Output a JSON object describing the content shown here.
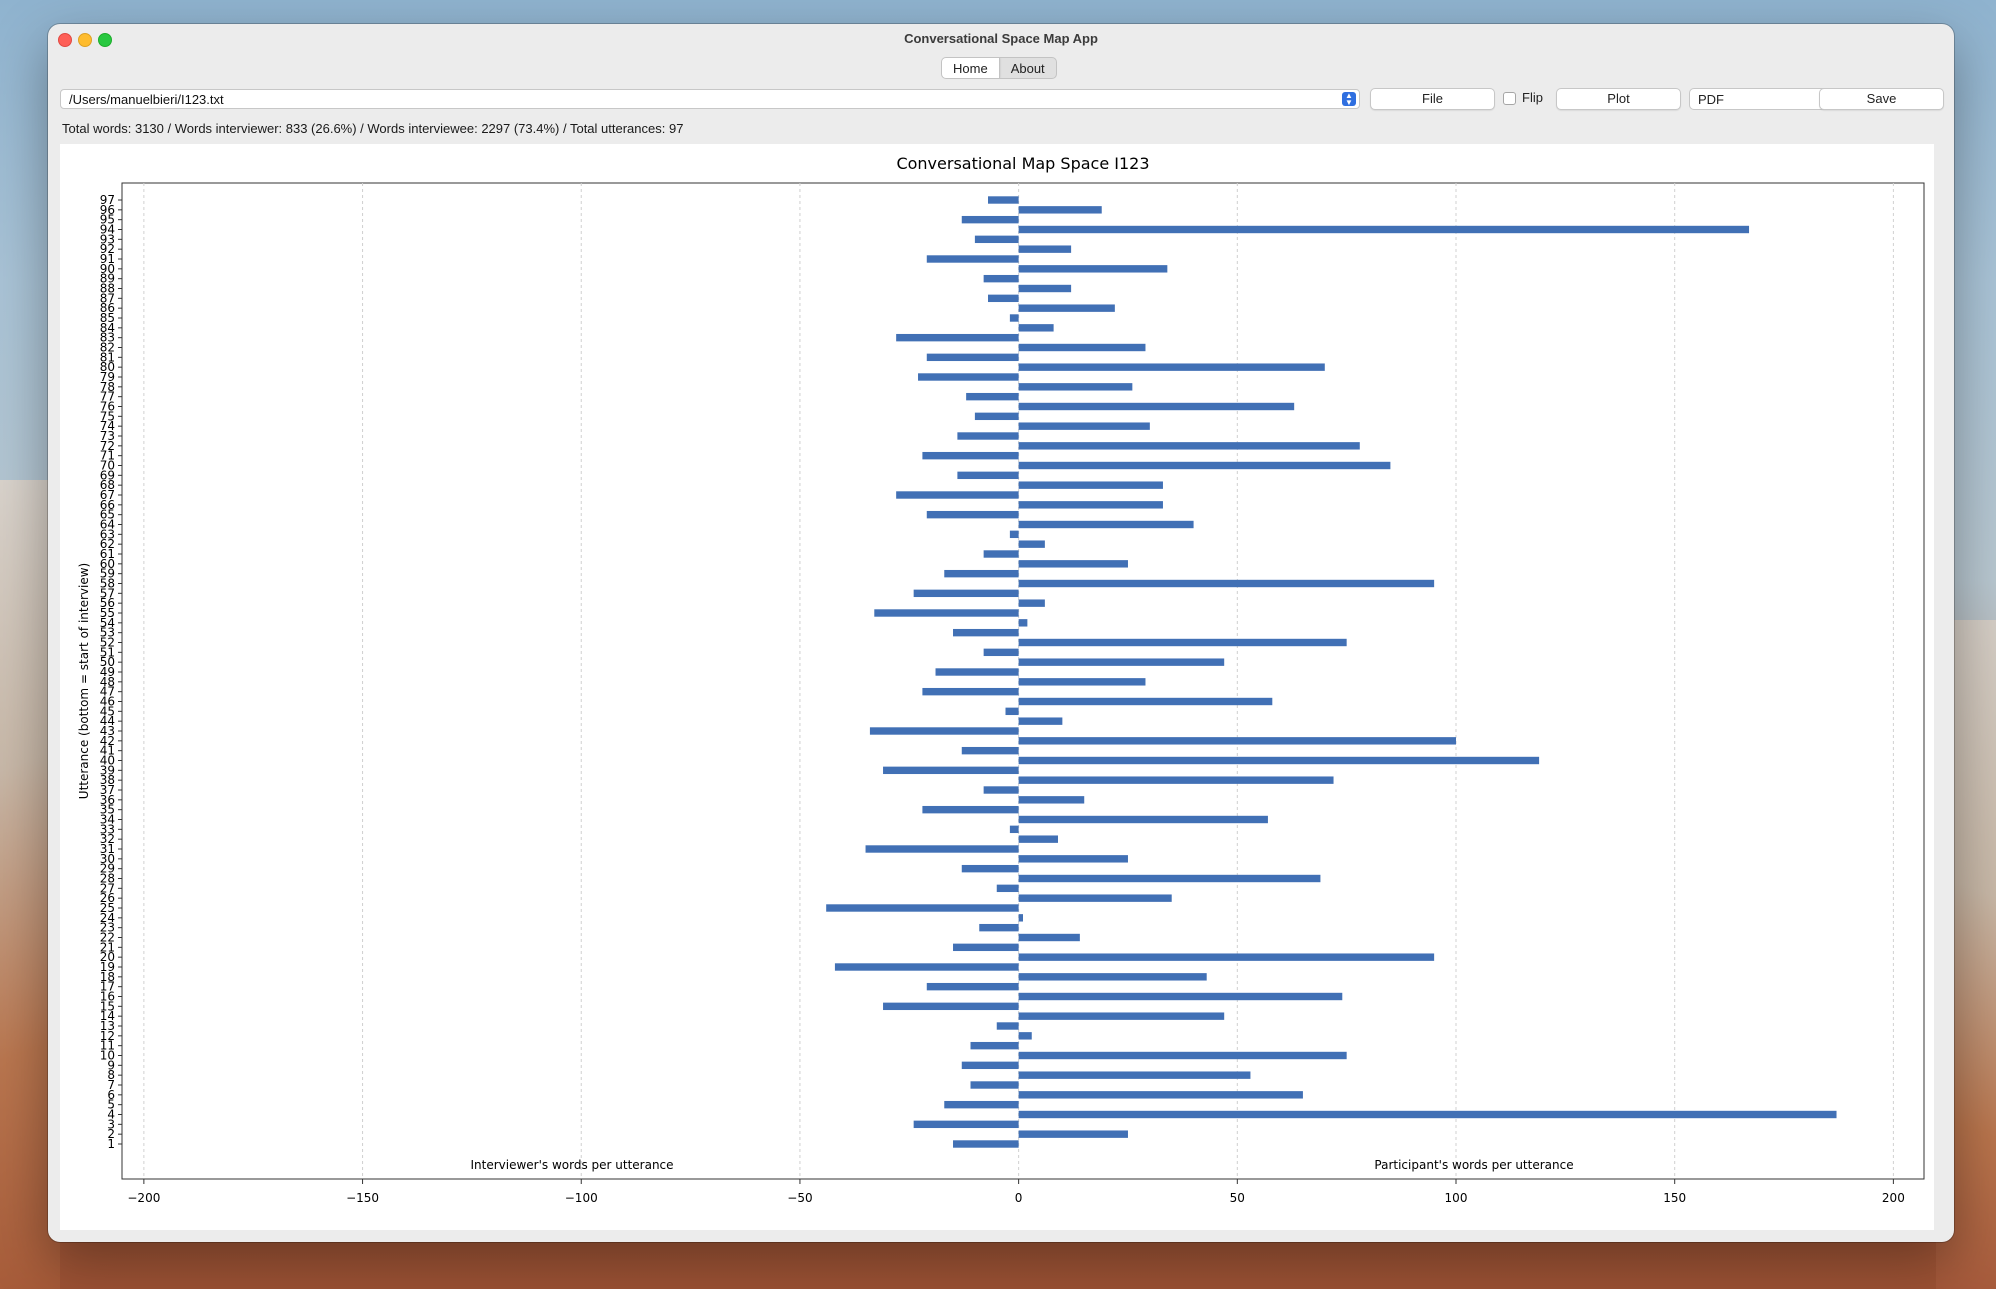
{
  "window": {
    "title": "Conversational Space Map App"
  },
  "tabs": [
    {
      "label": "Home",
      "active": true
    },
    {
      "label": "About",
      "active": false
    }
  ],
  "toolbar": {
    "file_path": "/Users/manuelbieri/I123.txt",
    "file_button": "File",
    "flip_label": "Flip",
    "flip_checked": false,
    "plot_button": "Plot",
    "format_value": "PDF",
    "save_button": "Save"
  },
  "stats": "Total words: 3130 / Words interviewer: 833 (26.6%) / Words interviewee: 2297 (73.4%) / Total utterances: 97",
  "colors": {
    "bar": "#4170b5",
    "accent": "#2f6fe0"
  },
  "chart_data": {
    "type": "bar",
    "orientation": "horizontal",
    "title": "Conversational Map Space I123",
    "ylabel": "Utterance (bottom = start of interview)",
    "left_label": "Interviewer's words per utterance",
    "right_label": "Participant's words per utterance",
    "xlim": [
      -205,
      207
    ],
    "xticks": [
      -200,
      -150,
      -100,
      -50,
      0,
      50,
      100,
      150,
      200
    ],
    "xtick_labels": [
      "−200",
      "−150",
      "−100",
      "−50",
      "0",
      "50",
      "100",
      "150",
      "200"
    ],
    "grid": "vertical dashed",
    "categories": [
      "1",
      "2",
      "3",
      "4",
      "5",
      "6",
      "7",
      "8",
      "9",
      "10",
      "11",
      "12",
      "13",
      "14",
      "15",
      "16",
      "17",
      "18",
      "19",
      "20",
      "21",
      "22",
      "23",
      "24",
      "25",
      "26",
      "27",
      "28",
      "29",
      "30",
      "31",
      "32",
      "33",
      "34",
      "35",
      "36",
      "37",
      "38",
      "39",
      "40",
      "41",
      "42",
      "43",
      "44",
      "45",
      "46",
      "47",
      "48",
      "49",
      "50",
      "51",
      "52",
      "53",
      "54",
      "55",
      "56",
      "57",
      "58",
      "59",
      "60",
      "61",
      "62",
      "63",
      "64",
      "65",
      "66",
      "67",
      "68",
      "69",
      "70",
      "71",
      "72",
      "73",
      "74",
      "75",
      "76",
      "77",
      "78",
      "79",
      "80",
      "81",
      "82",
      "83",
      "84",
      "85",
      "86",
      "87",
      "88",
      "89",
      "90",
      "91",
      "92",
      "93",
      "94",
      "95",
      "96",
      "97"
    ],
    "values": [
      -15,
      25,
      -24,
      187,
      -17,
      65,
      -11,
      53,
      -13,
      75,
      -11,
      3,
      -5,
      47,
      -31,
      74,
      -21,
      43,
      -42,
      95,
      -15,
      14,
      -9,
      1,
      -44,
      35,
      -5,
      69,
      -13,
      25,
      -35,
      9,
      -2,
      57,
      -22,
      15,
      -8,
      72,
      -31,
      119,
      -13,
      100,
      -34,
      10,
      -3,
      58,
      -22,
      29,
      -19,
      47,
      -8,
      75,
      -15,
      2,
      -33,
      6,
      -24,
      95,
      -17,
      25,
      -8,
      6,
      -2,
      40,
      -21,
      33,
      -28,
      33,
      -14,
      85,
      -22,
      78,
      -14,
      30,
      -10,
      63,
      -12,
      26,
      -23,
      70,
      -21,
      29,
      -28,
      8,
      -2,
      22,
      -7,
      12,
      -8,
      34,
      -21,
      12,
      -10,
      167,
      -13,
      19,
      -7
    ]
  }
}
